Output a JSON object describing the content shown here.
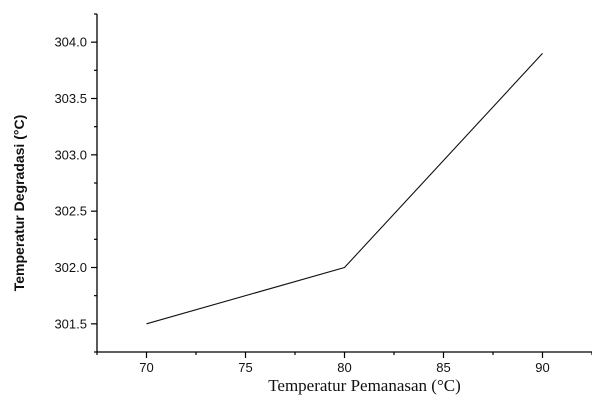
{
  "chart_data": {
    "type": "line",
    "x": [
      70,
      80,
      90
    ],
    "series": [
      {
        "values": [
          301.5,
          302.0,
          303.9
        ]
      }
    ],
    "xlabel": "Temperatur Pemanasan (°C)",
    "ylabel": "Temperatur Degradasi (°C)",
    "xlim": [
      67.5,
      92.5
    ],
    "ylim": [
      301.25,
      304.25
    ],
    "xticks": [
      70,
      75,
      80,
      85,
      90
    ],
    "xtick_labels": [
      "70",
      "75",
      "80",
      "85",
      "90"
    ],
    "yticks": [
      301.5,
      302.0,
      302.5,
      303.0,
      303.5,
      304.0
    ],
    "ytick_labels": [
      "301.5",
      "302.0",
      "302.5",
      "303.0",
      "303.5",
      "304.0"
    ],
    "grid": false,
    "line_color": "#111111"
  }
}
